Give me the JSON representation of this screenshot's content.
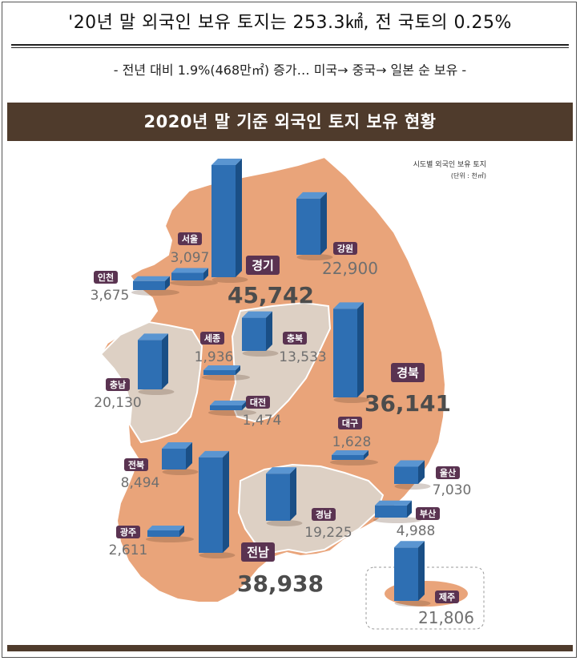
{
  "headline": "'20년 말 외국인 보유 토지는 253.3㎢, 전 국토의 0.25%",
  "subheadline": "- 전년 대비 1.9%(468만㎡) 증가… 미국→ 중국→ 일본 순 보유 -",
  "colors": {
    "banner": "#4f3b2c",
    "bar_front": "#2e6fb3",
    "bar_side": "#1a4f86",
    "bar_top": "#5a95d1",
    "map_orange": "#e9a47a",
    "map_beige": "#ddd0c4",
    "label_box": "#5a3351",
    "value_text": "#6f6f6f",
    "value_text_big": "#4c4c4c"
  },
  "chart_data": {
    "type": "bar",
    "title": "2020년 말 기준 외국인 토지 보유 현황",
    "subtitle": "시도별 외국인 보유 토지",
    "unit_note": "(단위 : 천㎡)",
    "categories": [
      "서울",
      "인천",
      "경기",
      "강원",
      "세종",
      "충북",
      "충남",
      "대전",
      "경북",
      "대구",
      "전북",
      "울산",
      "광주",
      "전남",
      "경남",
      "부산",
      "제주"
    ],
    "values_label": [
      "3,097",
      "3,675",
      "45,742",
      "22,900",
      "1,936",
      "13,533",
      "20,130",
      "1,474",
      "36,141",
      "1,628",
      "8,494",
      "7,030",
      "2,611",
      "38,938",
      "19,225",
      "4,988",
      "21,806"
    ],
    "values": [
      3097,
      3675,
      45742,
      22900,
      1936,
      13533,
      20130,
      1474,
      36141,
      1628,
      8494,
      7030,
      2611,
      38938,
      19225,
      4988,
      21806
    ],
    "highlighted": [
      "경기",
      "경북",
      "전남"
    ]
  }
}
